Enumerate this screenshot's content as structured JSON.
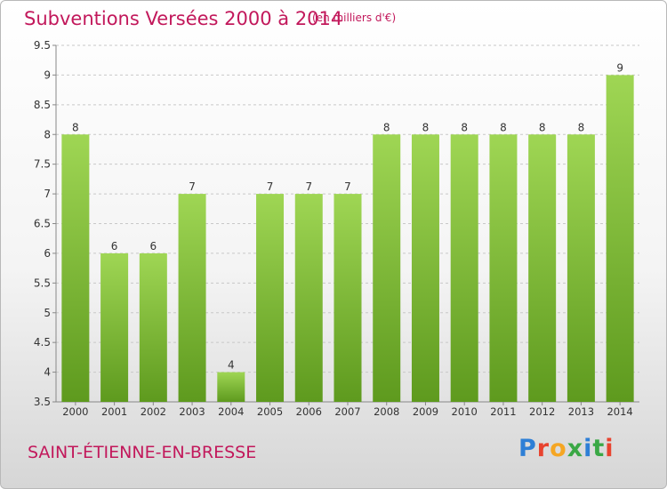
{
  "header": {
    "title": "Subventions Versées 2000 à 2014",
    "unit_note": "(en milliers d'€)"
  },
  "location": "SAINT-ÉTIENNE-EN-BRESSE",
  "logo": {
    "text": "Proxiti",
    "letters": [
      "P",
      "r",
      "o",
      "x",
      "i",
      "t",
      "i"
    ]
  },
  "colors": {
    "title": "#c2185b",
    "bar_top": "#9fd654",
    "bar_bottom": "#5e9a1e",
    "grid": "#c8c8c8",
    "axis": "#888888",
    "text": "#333333"
  },
  "chart_data": {
    "type": "bar",
    "title": "Subventions Versées 2000 à 2014",
    "categories": [
      "2000",
      "2001",
      "2002",
      "2003",
      "2004",
      "2005",
      "2006",
      "2007",
      "2008",
      "2009",
      "2010",
      "2011",
      "2012",
      "2013",
      "2014"
    ],
    "values": [
      8,
      6,
      6,
      7,
      4,
      7,
      7,
      7,
      8,
      8,
      8,
      8,
      8,
      8,
      9
    ],
    "data_labels": [
      "8",
      "6",
      "6",
      "7",
      "4",
      "7",
      "7",
      "7",
      "8",
      "8",
      "8",
      "8",
      "8",
      "8",
      "9"
    ],
    "ylim": [
      3.5,
      9.5
    ],
    "yticks": [
      3.5,
      4,
      4.5,
      5,
      5.5,
      6,
      6.5,
      7,
      7.5,
      8,
      8.5,
      9,
      9.5
    ],
    "ytick_labels": [
      "3.5",
      "4",
      "4.5",
      "5",
      "5.5",
      "6",
      "6.5",
      "7",
      "7.5",
      "8",
      "8.5",
      "9",
      "9.5"
    ],
    "grid": true,
    "legend": "none",
    "xlabel": "",
    "ylabel": ""
  }
}
